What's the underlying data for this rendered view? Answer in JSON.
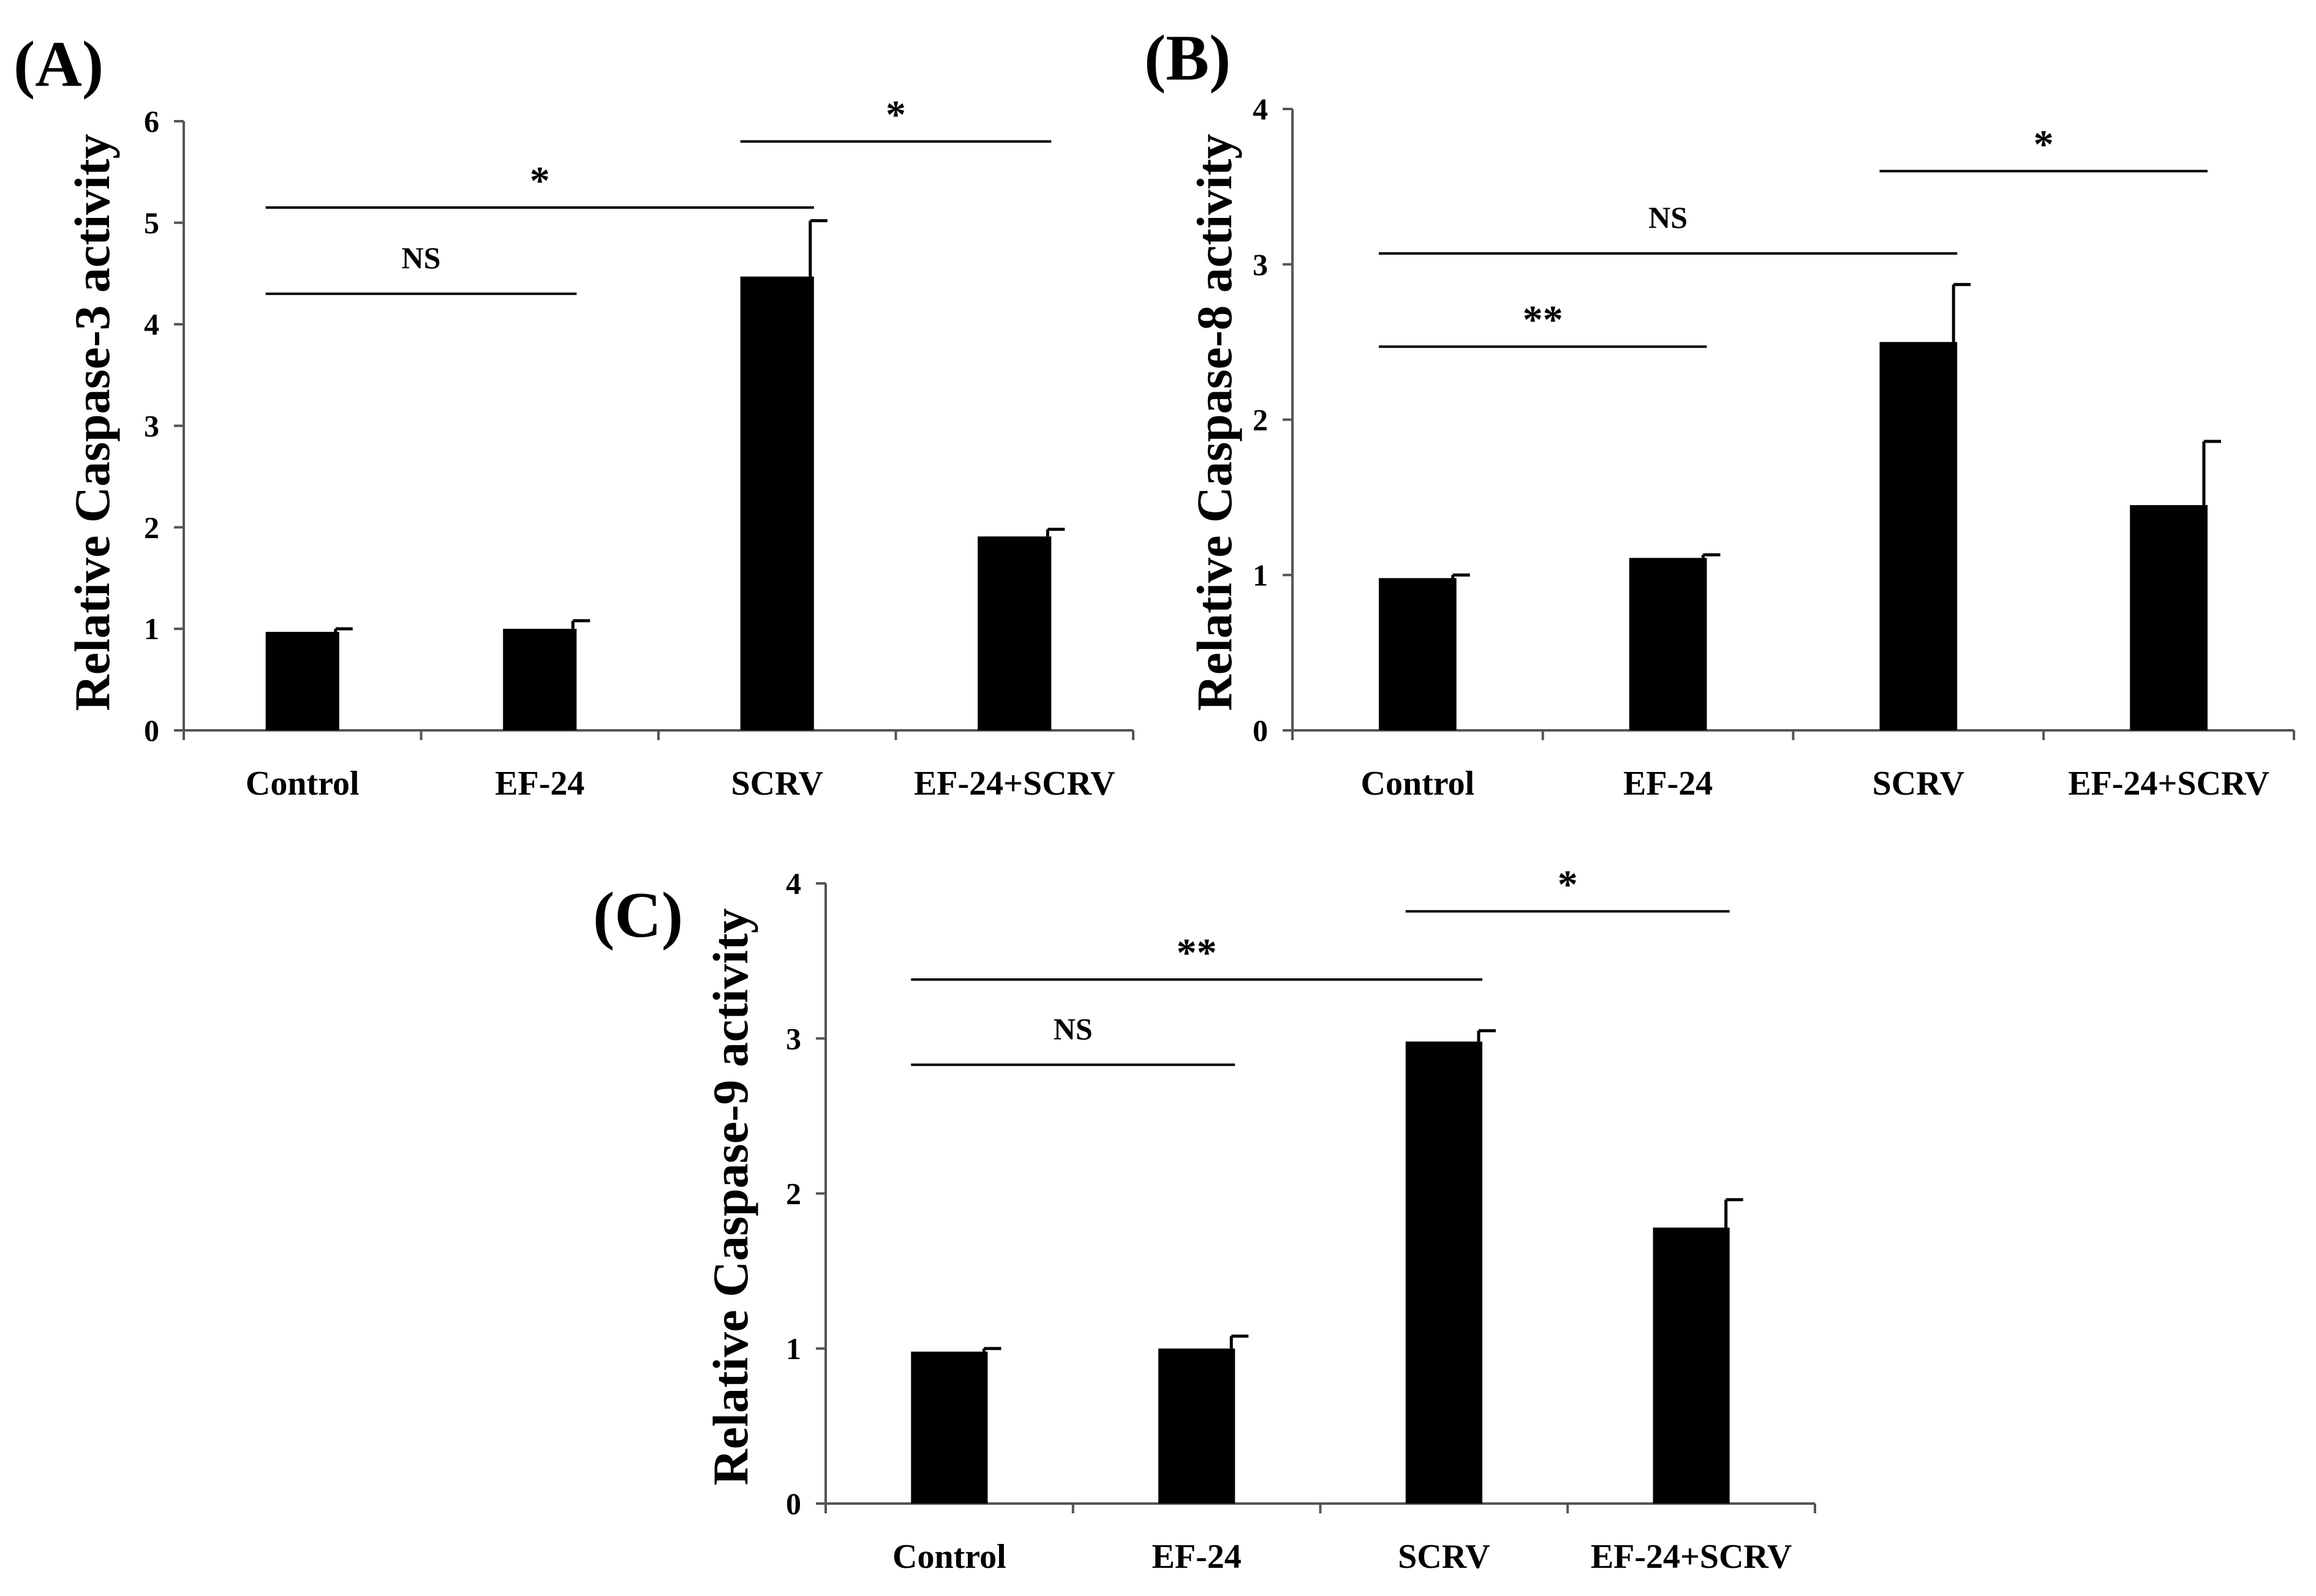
{
  "chart_data": [
    {
      "type": "bar",
      "panel": "(A)",
      "title": "",
      "xlabel": "",
      "ylabel": "Relative Caspase-3 activity",
      "ylim": [
        0,
        6
      ],
      "yticks": [
        0,
        1,
        2,
        3,
        4,
        5,
        6
      ],
      "categories": [
        "Control",
        "EF-24",
        "SCRV",
        "EF-24+SCRV"
      ],
      "values": [
        0.97,
        1.0,
        4.47,
        1.91
      ],
      "errors": [
        0.03,
        0.08,
        0.55,
        0.07
      ],
      "significance": [
        {
          "from": 0,
          "to": 1,
          "level": 4.3,
          "label": "NS"
        },
        {
          "from": 0,
          "to": 2,
          "level": 5.15,
          "label": "*"
        },
        {
          "from": 2,
          "to": 3,
          "level": 5.8,
          "label": "*"
        }
      ]
    },
    {
      "type": "bar",
      "panel": "(B)",
      "title": "",
      "xlabel": "",
      "ylabel": "Relative Caspase-8 activity",
      "ylim": [
        0,
        4
      ],
      "yticks": [
        0,
        1,
        2,
        3,
        4
      ],
      "categories": [
        "Control",
        "EF-24",
        "SCRV",
        "EF-24+SCRV"
      ],
      "values": [
        0.98,
        1.11,
        2.5,
        1.45
      ],
      "errors": [
        0.02,
        0.02,
        0.37,
        0.41
      ],
      "significance": [
        {
          "from": 0,
          "to": 1,
          "level": 2.47,
          "label": "**"
        },
        {
          "from": 0,
          "to": 2,
          "level": 3.07,
          "label": "NS"
        },
        {
          "from": 2,
          "to": 3,
          "level": 3.6,
          "label": "*"
        }
      ]
    },
    {
      "type": "bar",
      "panel": "(C)",
      "title": "",
      "xlabel": "",
      "ylabel": "Relative Caspase-9 activity",
      "ylim": [
        0,
        4
      ],
      "yticks": [
        0,
        1,
        2,
        3,
        4
      ],
      "categories": [
        "Control",
        "EF-24",
        "SCRV",
        "EF-24+SCRV"
      ],
      "values": [
        0.98,
        1.0,
        2.98,
        1.78
      ],
      "errors": [
        0.02,
        0.08,
        0.07,
        0.18
      ],
      "significance": [
        {
          "from": 0,
          "to": 1,
          "level": 2.83,
          "label": "NS"
        },
        {
          "from": 0,
          "to": 2,
          "level": 3.38,
          "label": "**"
        },
        {
          "from": 2,
          "to": 3,
          "level": 3.82,
          "label": "*"
        }
      ]
    }
  ]
}
